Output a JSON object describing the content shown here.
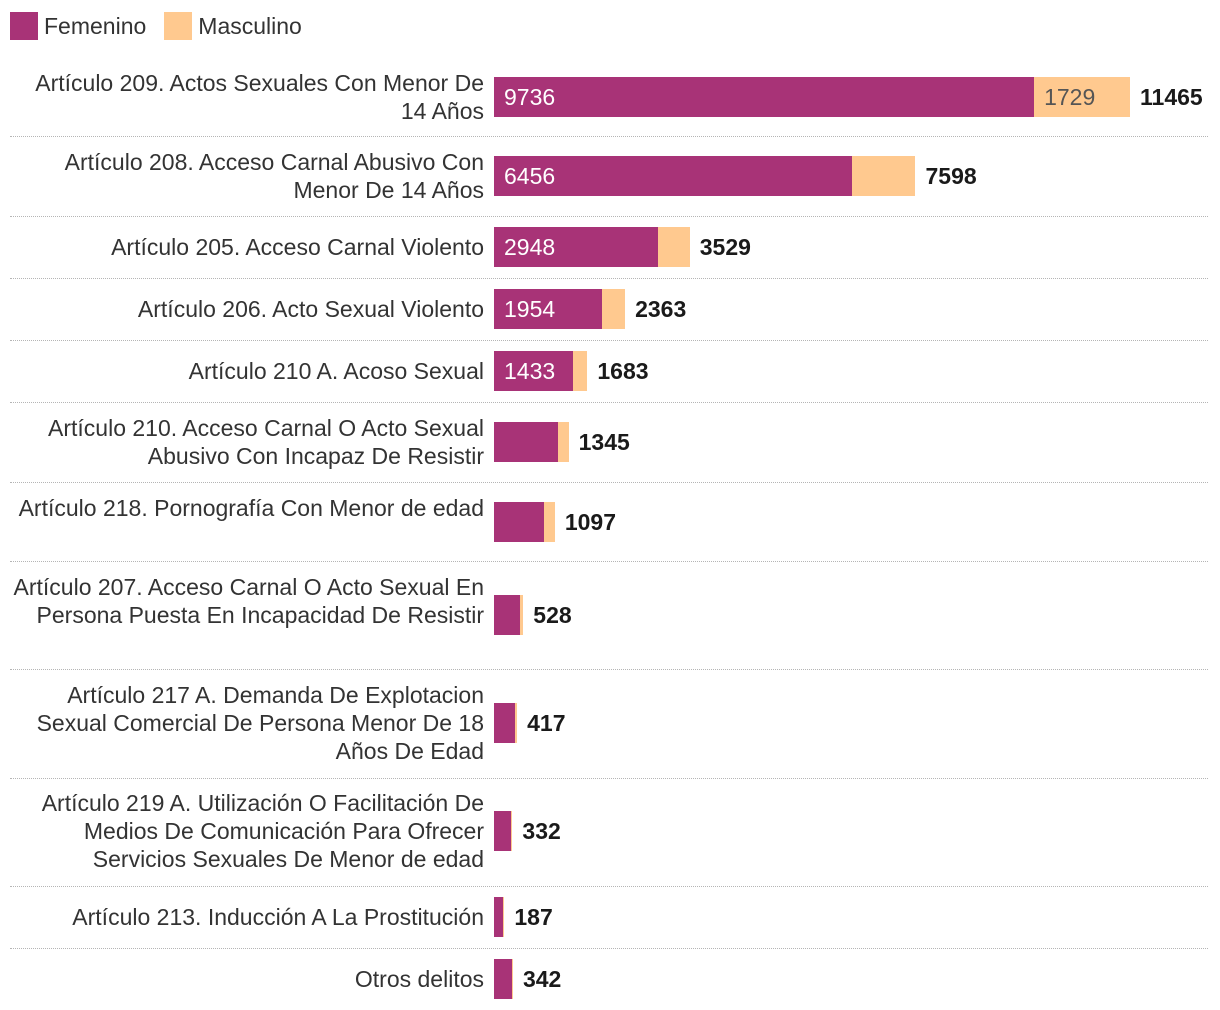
{
  "legend": {
    "femenino_label": "Femenino",
    "masculino_label": "Masculino"
  },
  "colors": {
    "femenino": "#a83377",
    "masculino": "#ffc98f",
    "text": "#333333",
    "total": "#1a1a1a",
    "divider": "#b5b5b5"
  },
  "chart_data": {
    "type": "bar",
    "orientation": "horizontal",
    "stacked": true,
    "title": "",
    "xlabel": "",
    "ylabel": "",
    "xlim": [
      0,
      11465
    ],
    "legend_position": "top-left",
    "grid": false,
    "categories": [
      "Artículo 209. Actos Sexuales Con Menor De 14 Años",
      "Artículo 208. Acceso Carnal Abusivo Con Menor De 14 Años",
      "Artículo 205. Acceso Carnal Violento",
      "Artículo 206. Acto Sexual Violento",
      "Artículo 210 A. Acoso Sexual",
      "Artículo 210. Acceso Carnal O Acto Sexual Abusivo Con Incapaz De Resistir",
      "Artículo 218. Pornografía Con Menor de edad",
      "Artículo 207. Acceso Carnal O Acto Sexual En Persona Puesta En Incapacidad De Resistir",
      "Artículo 217 A. Demanda De Explotacion Sexual Comercial De Persona Menor De 18 Años De Edad",
      "Artículo 219 A. Utilización O Facilitación De Medios De Comunicación Para Ofrecer Servicios Sexuales De Menor de edad",
      "Artículo 213. Inducción A La Prostitución",
      "Otros delitos"
    ],
    "series": [
      {
        "name": "Femenino",
        "values": [
          9736,
          6456,
          2948,
          1954,
          1433,
          1155,
          906,
          467,
          372,
          304,
          160,
          320
        ]
      },
      {
        "name": "Masculino",
        "values": [
          1729,
          1142,
          581,
          409,
          250,
          190,
          191,
          61,
          45,
          28,
          27,
          22
        ]
      }
    ],
    "totals": [
      11465,
      7598,
      3529,
      2363,
      1683,
      1345,
      1097,
      528,
      417,
      332,
      187,
      342
    ],
    "value_labels_femenino": [
      "9736",
      "6456",
      "2948",
      "1954",
      "1433",
      "",
      "",
      "",
      "",
      "",
      "",
      ""
    ],
    "value_labels_masculino": [
      "1729",
      "",
      "",
      "",
      "",
      "",
      "",
      "",
      "",
      "",
      "",
      ""
    ],
    "total_labels": [
      "11465",
      "7598",
      "3529",
      "2363",
      "1683",
      "1345",
      "1097",
      "528",
      "417",
      "332",
      "187",
      "342"
    ]
  }
}
